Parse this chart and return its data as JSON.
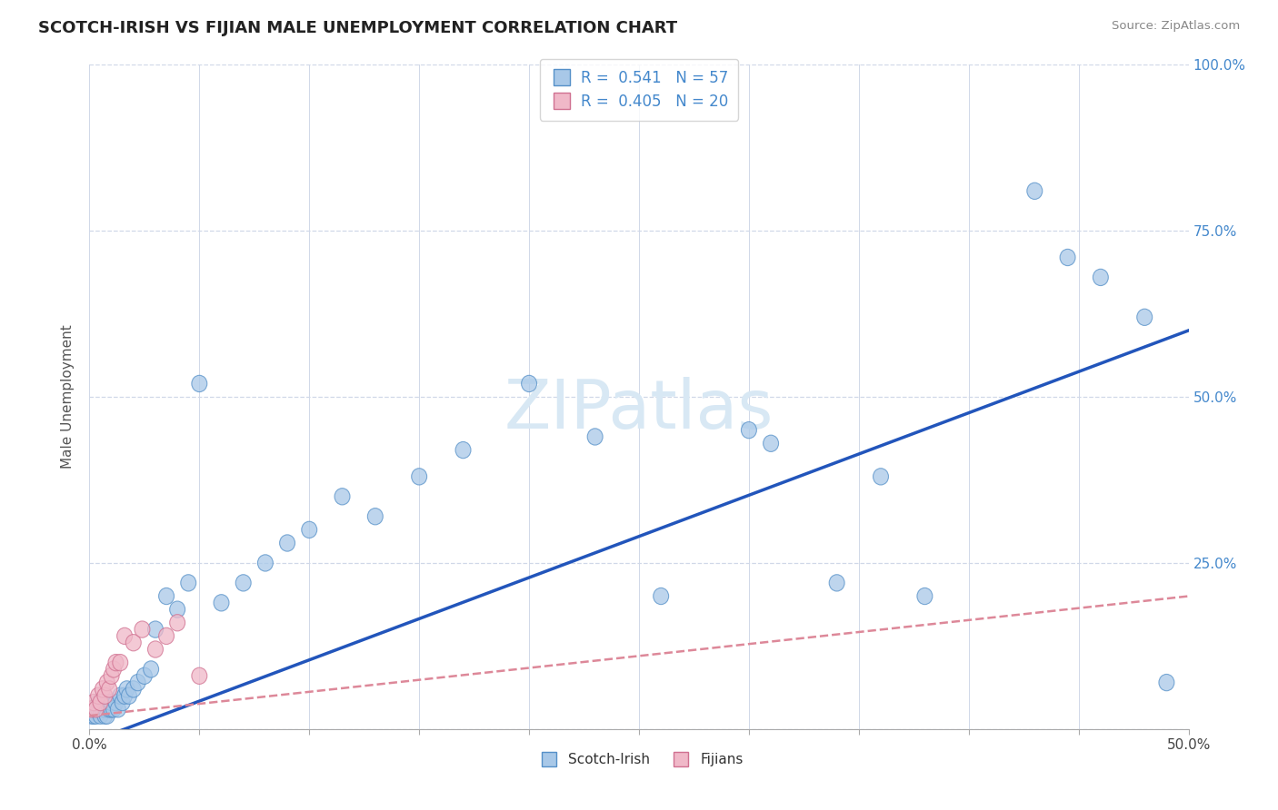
{
  "title": "SCOTCH-IRISH VS FIJIAN MALE UNEMPLOYMENT CORRELATION CHART",
  "source_text": "Source: ZipAtlas.com",
  "ylabel": "Male Unemployment",
  "xlim": [
    0.0,
    0.5
  ],
  "ylim": [
    0.0,
    1.0
  ],
  "xticks": [
    0.0,
    0.05,
    0.1,
    0.15,
    0.2,
    0.25,
    0.3,
    0.35,
    0.4,
    0.45,
    0.5
  ],
  "yticks": [
    0.0,
    0.25,
    0.5,
    0.75,
    1.0
  ],
  "scotch_irish_R": 0.541,
  "scotch_irish_N": 57,
  "fijian_R": 0.405,
  "fijian_N": 20,
  "blue_scatter_face": "#a8c8e8",
  "blue_scatter_edge": "#5590c8",
  "pink_scatter_face": "#f0b8c8",
  "pink_scatter_edge": "#d07090",
  "blue_line_color": "#2255bb",
  "pink_line_color": "#dd8899",
  "watermark_color": "#d8e8f4",
  "background_color": "#ffffff",
  "grid_color": "#d0d8e8",
  "ytick_color": "#4488cc",
  "xtick_color": "#444444",
  "title_color": "#222222",
  "source_color": "#888888",
  "si_line_x0": 0.0,
  "si_line_y0": -0.02,
  "si_line_x1": 0.5,
  "si_line_y1": 0.6,
  "fj_line_x0": 0.0,
  "fj_line_y0": 0.02,
  "fj_line_x1": 0.5,
  "fj_line_y1": 0.2,
  "scotch_irish_x": [
    0.001,
    0.002,
    0.002,
    0.003,
    0.003,
    0.004,
    0.004,
    0.005,
    0.005,
    0.006,
    0.006,
    0.007,
    0.007,
    0.008,
    0.008,
    0.009,
    0.01,
    0.01,
    0.011,
    0.012,
    0.013,
    0.014,
    0.015,
    0.016,
    0.017,
    0.018,
    0.02,
    0.022,
    0.025,
    0.028,
    0.03,
    0.035,
    0.04,
    0.045,
    0.05,
    0.06,
    0.07,
    0.08,
    0.09,
    0.1,
    0.115,
    0.13,
    0.15,
    0.17,
    0.2,
    0.23,
    0.26,
    0.3,
    0.34,
    0.38,
    0.31,
    0.36,
    0.43,
    0.445,
    0.46,
    0.48,
    0.49
  ],
  "scotch_irish_y": [
    0.02,
    0.02,
    0.03,
    0.03,
    0.02,
    0.03,
    0.04,
    0.03,
    0.02,
    0.03,
    0.04,
    0.02,
    0.03,
    0.04,
    0.02,
    0.03,
    0.03,
    0.04,
    0.03,
    0.04,
    0.03,
    0.05,
    0.04,
    0.05,
    0.06,
    0.05,
    0.06,
    0.07,
    0.08,
    0.09,
    0.15,
    0.2,
    0.18,
    0.22,
    0.52,
    0.19,
    0.22,
    0.25,
    0.28,
    0.3,
    0.35,
    0.32,
    0.38,
    0.42,
    0.52,
    0.44,
    0.2,
    0.45,
    0.22,
    0.2,
    0.43,
    0.38,
    0.81,
    0.71,
    0.68,
    0.62,
    0.07
  ],
  "fijian_x": [
    0.001,
    0.002,
    0.003,
    0.004,
    0.005,
    0.006,
    0.007,
    0.008,
    0.009,
    0.01,
    0.011,
    0.012,
    0.014,
    0.016,
    0.02,
    0.024,
    0.03,
    0.035,
    0.04,
    0.05
  ],
  "fijian_y": [
    0.03,
    0.04,
    0.03,
    0.05,
    0.04,
    0.06,
    0.05,
    0.07,
    0.06,
    0.08,
    0.09,
    0.1,
    0.1,
    0.14,
    0.13,
    0.15,
    0.12,
    0.14,
    0.16,
    0.08
  ]
}
